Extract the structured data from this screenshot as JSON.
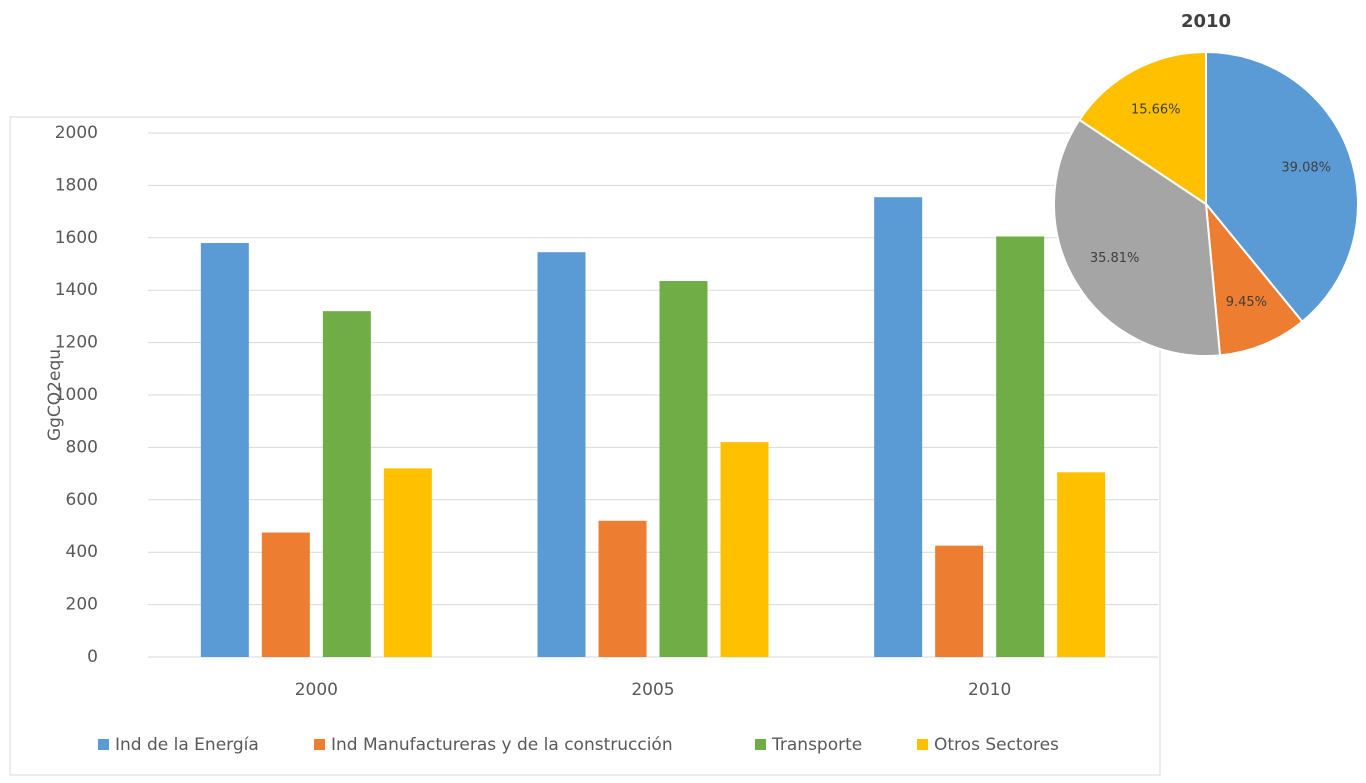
{
  "chart_data": [
    {
      "type": "bar",
      "ylabel": "GgCO2equ",
      "categories": [
        "2000",
        "2005",
        "2010"
      ],
      "series": [
        {
          "name": "Ind de la Energía",
          "color": "#5b9bd5",
          "values": [
            1580,
            1545,
            1755
          ]
        },
        {
          "name": "Ind Manufactureras y de la construcción",
          "color": "#ed7d31",
          "values": [
            475,
            520,
            425
          ]
        },
        {
          "name": "Transporte",
          "color": "#70ad47",
          "values": [
            1320,
            1435,
            1605
          ]
        },
        {
          "name": "Otros Sectores",
          "color": "#ffc000",
          "values": [
            720,
            820,
            705
          ]
        }
      ],
      "ylim": [
        0,
        2000
      ],
      "yticks": [
        0,
        200,
        400,
        600,
        800,
        1000,
        1200,
        1400,
        1600,
        1800,
        2000
      ],
      "grid": true,
      "legend": "bottom"
    },
    {
      "type": "pie",
      "title": "2010",
      "values": [
        39.08,
        9.45,
        35.81,
        15.66
      ],
      "value_labels": [
        "39.08%",
        "9.45%",
        "35.81%",
        "15.66%"
      ],
      "colors": [
        "#5b9bd5",
        "#ed7d31",
        "#a5a5a5",
        "#ffc000"
      ]
    }
  ]
}
